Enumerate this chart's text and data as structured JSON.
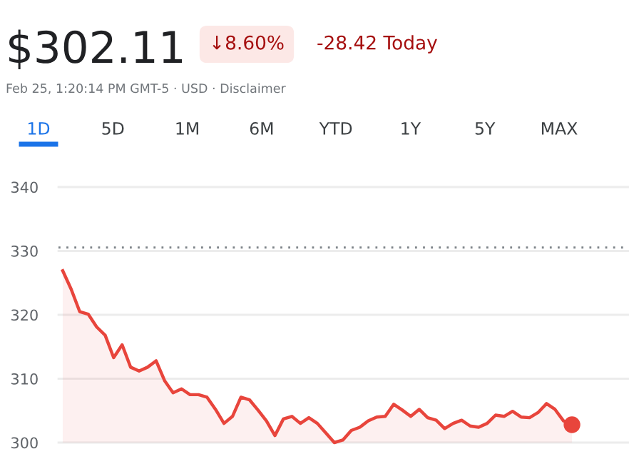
{
  "chart_data": {
    "type": "area",
    "title": "$302.11",
    "subtitle": "Feb 25, 1:20:14 PM GMT-5 · USD · Disclaimer",
    "annotations": [
      "↓8.60%",
      "-28.42 Today",
      "1D",
      "5D",
      "1M",
      "6M",
      "YTD",
      "1Y",
      "5Y",
      "MAX"
    ],
    "categories": [
      null,
      null,
      null,
      null,
      null,
      null,
      null,
      null,
      null,
      null,
      null,
      null,
      null,
      null,
      null,
      null,
      null,
      null,
      null,
      null,
      null,
      null,
      null,
      null,
      null,
      null,
      null,
      null,
      null,
      null,
      null,
      null,
      null,
      null,
      null,
      null,
      null,
      null,
      null,
      null,
      null,
      null,
      null,
      null,
      null,
      null,
      null,
      null,
      null,
      null,
      null,
      null,
      null,
      null,
      null,
      null,
      null,
      null,
      null,
      null,
      null
    ],
    "series": [
      {
        "color": "#e8453c",
        "values": [
          326.9,
          324.0,
          320.5,
          320.1,
          318.1,
          316.8,
          313.3,
          315.3,
          311.8,
          311.2,
          311.8,
          312.8,
          309.7,
          307.8,
          308.4,
          307.5,
          307.5,
          307.1,
          305.2,
          303.0,
          304.1,
          307.1,
          306.7,
          305.1,
          303.4,
          301.1,
          303.7,
          304.1,
          303.0,
          303.9,
          303.0,
          301.5,
          300.0,
          300.4,
          301.9,
          302.4,
          303.4,
          304.0,
          304.1,
          306.0,
          305.1,
          304.1,
          305.2,
          303.9,
          303.5,
          302.2,
          303.0,
          303.5,
          302.6,
          302.4,
          303.0,
          304.3,
          304.1,
          304.9,
          304.0,
          303.9,
          304.7,
          306.1,
          305.2,
          303.4,
          302.8
        ]
      }
    ],
    "ylim": [
      300,
      340
    ],
    "yticks": [
      300,
      310,
      320,
      330,
      340
    ],
    "grid": "y",
    "tick_labels": "y",
    "ref_lines": [
      {
        "axis": "y",
        "value": 330.53,
        "color": "#80868b",
        "line_style": "dotted"
      }
    ]
  }
}
